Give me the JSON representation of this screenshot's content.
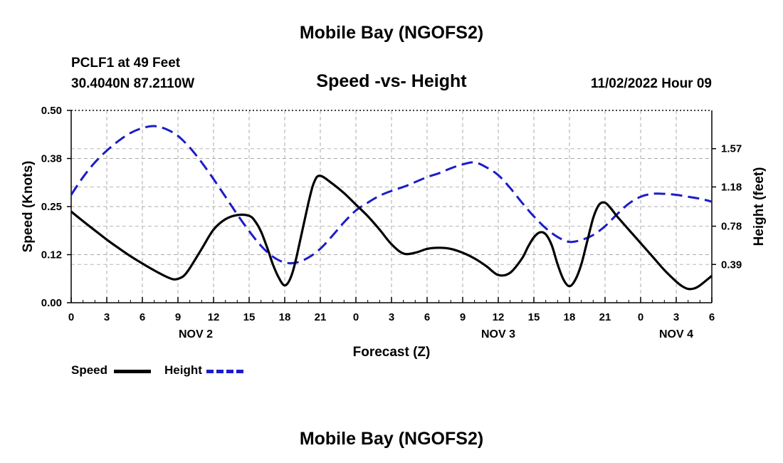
{
  "header": {
    "title_top": "Mobile Bay (NGOFS2)",
    "title_bottom": "Mobile Bay (NGOFS2)",
    "station_line": "PCLF1 at 49 Feet",
    "coords_line": "30.4040N  87.2110W",
    "chart_title": "Speed -vs- Height",
    "timestamp": "11/02/2022 Hour 09"
  },
  "chart_data": {
    "type": "line",
    "title": "Speed -vs- Height",
    "xlabel": "Forecast (Z)",
    "ylabel": "Speed (Knots)",
    "y2label": "Height (feet)",
    "x_unit": "hours from 00Z Nov 2",
    "xlim": [
      0,
      54
    ],
    "ylim": [
      0,
      0.5
    ],
    "y2lim": [
      0,
      1.96
    ],
    "x_ticks": [
      {
        "x": 0,
        "label": "0"
      },
      {
        "x": 3,
        "label": "3"
      },
      {
        "x": 6,
        "label": "6"
      },
      {
        "x": 9,
        "label": "9"
      },
      {
        "x": 12,
        "label": "12"
      },
      {
        "x": 15,
        "label": "15"
      },
      {
        "x": 18,
        "label": "18"
      },
      {
        "x": 21,
        "label": "21"
      },
      {
        "x": 24,
        "label": "0"
      },
      {
        "x": 27,
        "label": "3"
      },
      {
        "x": 30,
        "label": "6"
      },
      {
        "x": 33,
        "label": "9"
      },
      {
        "x": 36,
        "label": "12"
      },
      {
        "x": 39,
        "label": "15"
      },
      {
        "x": 42,
        "label": "18"
      },
      {
        "x": 45,
        "label": "21"
      },
      {
        "x": 48,
        "label": "0"
      },
      {
        "x": 51,
        "label": "3"
      },
      {
        "x": 54,
        "label": "6"
      }
    ],
    "date_labels": [
      {
        "x": 10.5,
        "label": "NOV 2"
      },
      {
        "x": 36,
        "label": "NOV 3"
      },
      {
        "x": 51,
        "label": "NOV 4"
      }
    ],
    "y_ticks": [
      {
        "y": 0,
        "label": "0.00"
      },
      {
        "y": 0.125,
        "label": "0.12"
      },
      {
        "y": 0.25,
        "label": "0.25"
      },
      {
        "y": 0.375,
        "label": "0.38"
      },
      {
        "y": 0.5,
        "label": "0.50"
      }
    ],
    "y2_ticks": [
      {
        "y": 0.39,
        "label": "0.39"
      },
      {
        "y": 0.78,
        "label": "0.78"
      },
      {
        "y": 1.18,
        "label": "1.18"
      },
      {
        "y": 1.57,
        "label": "1.57"
      }
    ],
    "series": [
      {
        "name": "Speed",
        "axis": "left",
        "color": "#000000",
        "dash": "solid",
        "points": [
          [
            0,
            0.237
          ],
          [
            1,
            0.212
          ],
          [
            2,
            0.188
          ],
          [
            3,
            0.164
          ],
          [
            4,
            0.142
          ],
          [
            5,
            0.121
          ],
          [
            6,
            0.102
          ],
          [
            7,
            0.084
          ],
          [
            8,
            0.068
          ],
          [
            8.6,
            0.061
          ],
          [
            9,
            0.062
          ],
          [
            9.5,
            0.07
          ],
          [
            10,
            0.09
          ],
          [
            11,
            0.14
          ],
          [
            12,
            0.19
          ],
          [
            13,
            0.217
          ],
          [
            14,
            0.228
          ],
          [
            15,
            0.226
          ],
          [
            15.5,
            0.212
          ],
          [
            16,
            0.185
          ],
          [
            16.5,
            0.145
          ],
          [
            17,
            0.1
          ],
          [
            17.5,
            0.065
          ],
          [
            18,
            0.045
          ],
          [
            18.5,
            0.065
          ],
          [
            19,
            0.12
          ],
          [
            20,
            0.26
          ],
          [
            20.5,
            0.315
          ],
          [
            21,
            0.33
          ],
          [
            22,
            0.31
          ],
          [
            23,
            0.285
          ],
          [
            24,
            0.255
          ],
          [
            25,
            0.225
          ],
          [
            26,
            0.19
          ],
          [
            27,
            0.152
          ],
          [
            28,
            0.128
          ],
          [
            29,
            0.13
          ],
          [
            30,
            0.14
          ],
          [
            31,
            0.143
          ],
          [
            32,
            0.14
          ],
          [
            33,
            0.13
          ],
          [
            34,
            0.115
          ],
          [
            35,
            0.095
          ],
          [
            36,
            0.072
          ],
          [
            37,
            0.078
          ],
          [
            38,
            0.115
          ],
          [
            38.5,
            0.145
          ],
          [
            39,
            0.17
          ],
          [
            39.5,
            0.183
          ],
          [
            40,
            0.178
          ],
          [
            40.5,
            0.15
          ],
          [
            41,
            0.1
          ],
          [
            41.5,
            0.06
          ],
          [
            42,
            0.043
          ],
          [
            42.5,
            0.06
          ],
          [
            43,
            0.1
          ],
          [
            43.5,
            0.16
          ],
          [
            44,
            0.22
          ],
          [
            44.5,
            0.255
          ],
          [
            45,
            0.26
          ],
          [
            45.5,
            0.245
          ],
          [
            46,
            0.225
          ],
          [
            47,
            0.19
          ],
          [
            48,
            0.155
          ],
          [
            49,
            0.12
          ],
          [
            50,
            0.085
          ],
          [
            51,
            0.055
          ],
          [
            51.5,
            0.043
          ],
          [
            52,
            0.036
          ],
          [
            52.5,
            0.037
          ],
          [
            53,
            0.045
          ],
          [
            54,
            0.07
          ]
        ]
      },
      {
        "name": "Height",
        "axis": "right",
        "color": "#1c1cc8",
        "dash": "dashed",
        "points": [
          [
            0,
            1.1
          ],
          [
            1,
            1.28
          ],
          [
            2,
            1.43
          ],
          [
            3,
            1.55
          ],
          [
            4,
            1.65
          ],
          [
            5,
            1.73
          ],
          [
            6,
            1.78
          ],
          [
            7,
            1.8
          ],
          [
            8,
            1.77
          ],
          [
            9,
            1.7
          ],
          [
            10,
            1.58
          ],
          [
            11,
            1.43
          ],
          [
            12,
            1.26
          ],
          [
            13,
            1.08
          ],
          [
            14,
            0.9
          ],
          [
            15,
            0.73
          ],
          [
            16,
            0.58
          ],
          [
            17,
            0.47
          ],
          [
            18,
            0.41
          ],
          [
            19,
            0.41
          ],
          [
            20,
            0.46
          ],
          [
            21,
            0.55
          ],
          [
            22,
            0.68
          ],
          [
            23,
            0.82
          ],
          [
            24,
            0.94
          ],
          [
            25,
            1.02
          ],
          [
            26,
            1.09
          ],
          [
            27,
            1.14
          ],
          [
            28,
            1.18
          ],
          [
            29,
            1.23
          ],
          [
            30,
            1.28
          ],
          [
            31,
            1.32
          ],
          [
            32,
            1.37
          ],
          [
            33,
            1.41
          ],
          [
            34,
            1.43
          ],
          [
            35,
            1.38
          ],
          [
            36,
            1.3
          ],
          [
            37,
            1.17
          ],
          [
            38,
            1.02
          ],
          [
            39,
            0.88
          ],
          [
            40,
            0.76
          ],
          [
            41,
            0.67
          ],
          [
            42,
            0.62
          ],
          [
            43,
            0.64
          ],
          [
            44,
            0.69
          ],
          [
            45,
            0.78
          ],
          [
            46,
            0.9
          ],
          [
            47,
            1.01
          ],
          [
            48,
            1.08
          ],
          [
            49,
            1.11
          ],
          [
            50,
            1.11
          ],
          [
            51,
            1.1
          ],
          [
            52,
            1.08
          ],
          [
            53,
            1.06
          ],
          [
            54,
            1.03
          ]
        ]
      }
    ],
    "legend": [
      {
        "label": "Speed",
        "color": "#000000",
        "dash": "solid"
      },
      {
        "label": "Height",
        "color": "#1c1cc8",
        "dash": "dashed"
      }
    ]
  }
}
